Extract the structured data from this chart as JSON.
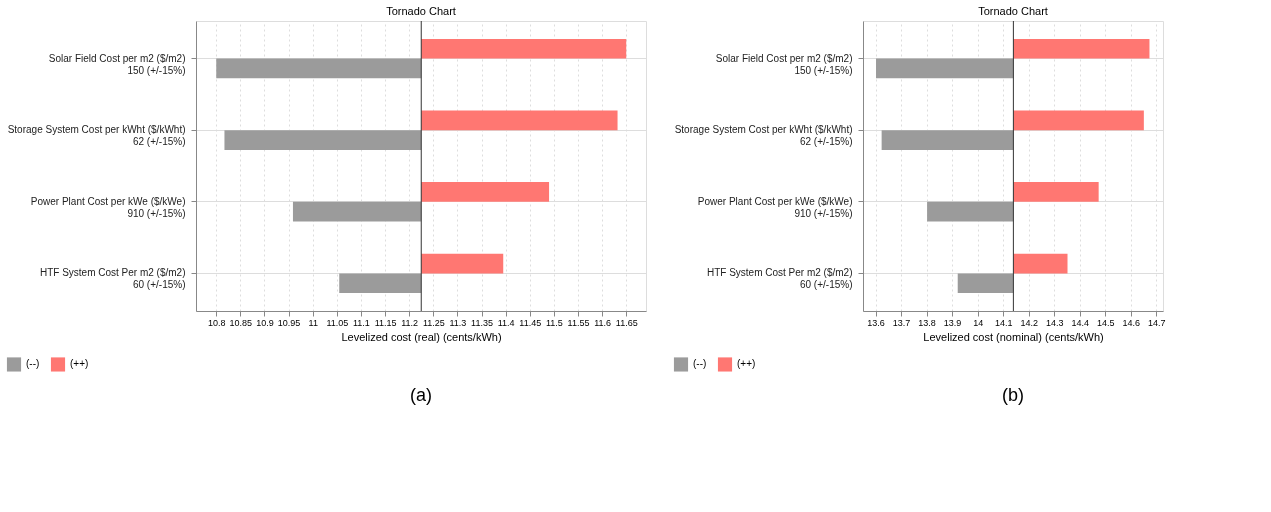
{
  "chart_data": [
    {
      "type": "bar",
      "orientation": "horizontal",
      "title": "Tornado Chart",
      "xlabel": "Levelized cost (real) (cents/kWh)",
      "categories": [
        "Solar Field Cost per m2 ($/m2)\n150 (+/-15%)",
        "Storage System Cost per kWht ($/kWht)\n62 (+/-15%)",
        "Power Plant Cost per kWe ($/kWe)\n910 (+/-15%)",
        "HTF System Cost Per m2 ($/m2)\n60 (+/-15%)"
      ],
      "series": [
        {
          "name": "(--)",
          "color": "#9b9b9b",
          "base": [
            11.225,
            11.225,
            11.225,
            11.225
          ],
          "values": [
            -0.425,
            -0.408,
            -0.266,
            -0.17
          ]
        },
        {
          "name": "(++)",
          "color": "#ff7772",
          "base": [
            11.225,
            11.225,
            11.225,
            11.225
          ],
          "values": [
            0.425,
            0.407,
            0.265,
            0.17
          ]
        }
      ],
      "xlim": [
        10.758,
        11.691
      ],
      "xticks": [
        10.8,
        10.85,
        10.9,
        10.95,
        11,
        11.05,
        11.1,
        11.15,
        11.2,
        11.25,
        11.3,
        11.35,
        11.4,
        11.45,
        11.5,
        11.55,
        11.6,
        11.65
      ],
      "ref_lines": [
        {
          "axis": "x",
          "value": 11.225,
          "color": "#333333"
        }
      ],
      "grid": true,
      "legend": "bottom left",
      "annotations": [
        "(a)"
      ]
    },
    {
      "type": "bar",
      "orientation": "horizontal",
      "title": "Tornado Chart",
      "xlabel": "Levelized cost (nominal) (cents/kWh)",
      "categories": [
        "Solar Field Cost per m2 ($/m2)\n150 (+/-15%)",
        "Storage System Cost per kWht ($/kWht)\n62 (+/-15%)",
        "Power Plant Cost per kWe ($/kWe)\n910 (+/-15%)",
        "HTF System Cost Per m2 ($/m2)\n60 (+/-15%)"
      ],
      "series": [
        {
          "name": "(--)",
          "color": "#9b9b9b",
          "base": [
            14.14,
            14.14,
            14.14,
            14.14
          ],
          "values": [
            -0.538,
            -0.516,
            -0.338,
            -0.218
          ]
        },
        {
          "name": "(++)",
          "color": "#ff7772",
          "base": [
            14.14,
            14.14,
            14.14,
            14.14
          ],
          "values": [
            0.533,
            0.511,
            0.334,
            0.212
          ]
        }
      ],
      "xlim": [
        13.551,
        14.726
      ],
      "xticks": [
        13.6,
        13.7,
        13.8,
        13.9,
        14,
        14.1,
        14.2,
        14.3,
        14.4,
        14.5,
        14.6,
        14.7
      ],
      "ref_lines": [
        {
          "axis": "x",
          "value": 14.14,
          "color": "#333333"
        }
      ],
      "grid": true,
      "legend": "bottom left",
      "annotations": [
        "(b)"
      ]
    }
  ]
}
